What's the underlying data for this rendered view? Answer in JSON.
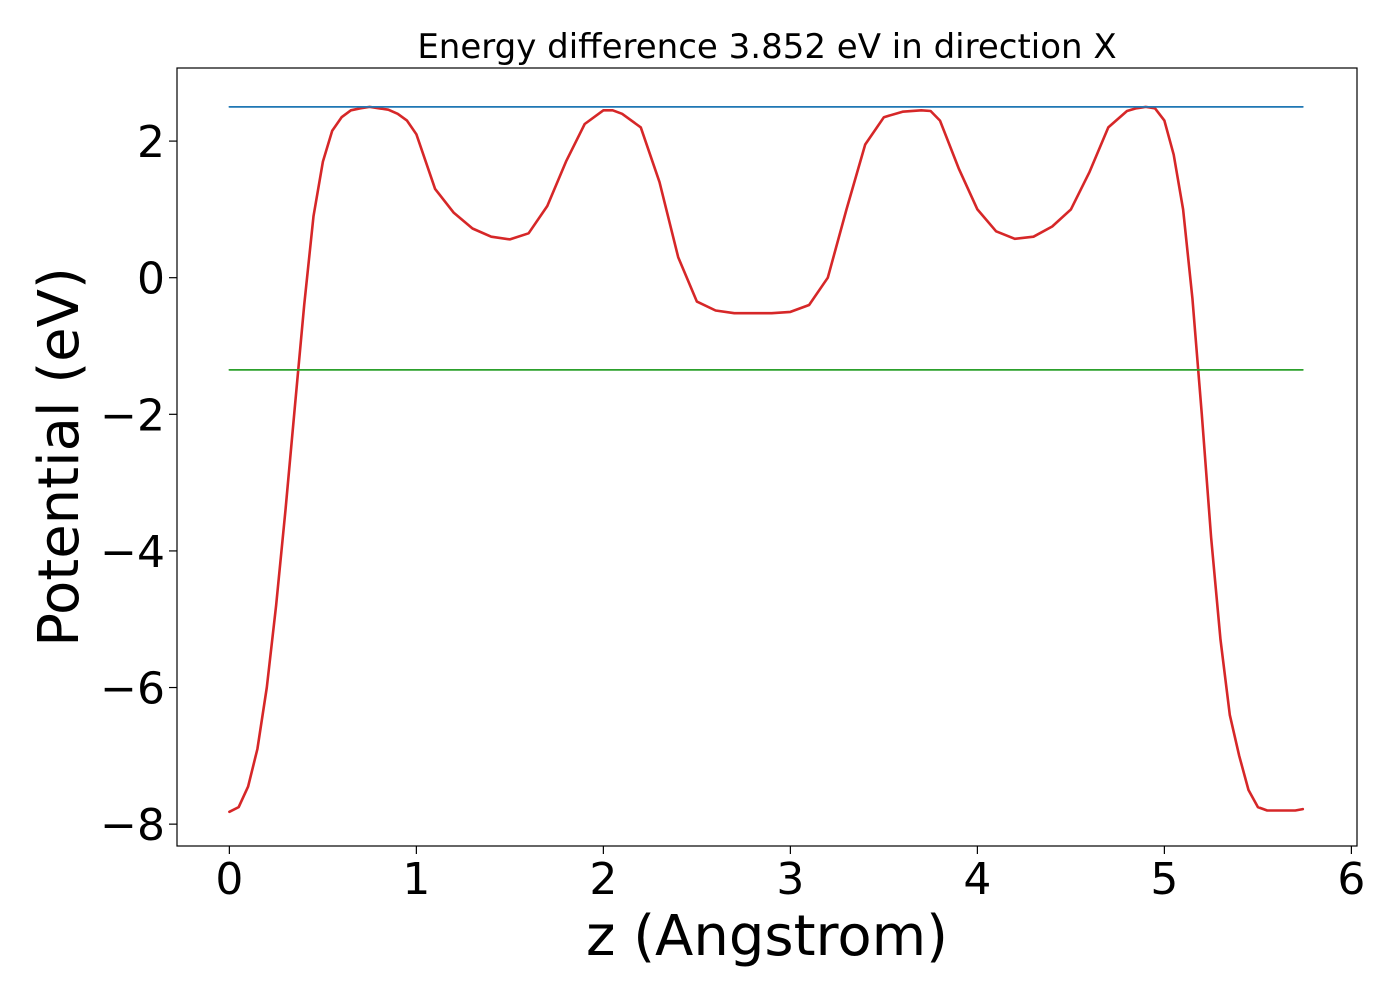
{
  "chart_data": {
    "type": "line",
    "title": "Energy difference 3.852 eV in direction X",
    "xlabel": "z (Angstrom)",
    "ylabel": "Potential (eV)",
    "xlim": [
      -0.28,
      6.03
    ],
    "ylim": [
      -8.32,
      3.07
    ],
    "xticks": [
      0,
      1,
      2,
      3,
      4,
      5,
      6
    ],
    "yticks": [
      -8,
      -6,
      -4,
      -2,
      0,
      2
    ],
    "xtick_labels": [
      "0",
      "1",
      "2",
      "3",
      "4",
      "5",
      "6"
    ],
    "ytick_labels": [
      "−8",
      "−6",
      "−4",
      "−2",
      "0",
      "2"
    ],
    "grid": false,
    "legend": "none",
    "series": [
      {
        "color": "#d62728",
        "x": [
          0.0,
          0.05,
          0.1,
          0.15,
          0.2,
          0.25,
          0.3,
          0.35,
          0.4,
          0.45,
          0.5,
          0.55,
          0.6,
          0.65,
          0.7,
          0.75,
          0.8,
          0.85,
          0.9,
          0.95,
          1.0,
          1.1,
          1.2,
          1.3,
          1.4,
          1.5,
          1.6,
          1.7,
          1.8,
          1.9,
          2.0,
          2.05,
          2.1,
          2.2,
          2.3,
          2.4,
          2.5,
          2.6,
          2.7,
          2.8,
          2.9,
          3.0,
          3.1,
          3.2,
          3.3,
          3.4,
          3.5,
          3.6,
          3.7,
          3.75,
          3.8,
          3.9,
          4.0,
          4.1,
          4.2,
          4.3,
          4.4,
          4.5,
          4.6,
          4.7,
          4.8,
          4.85,
          4.9,
          4.95,
          5.0,
          5.05,
          5.1,
          5.15,
          5.2,
          5.25,
          5.3,
          5.35,
          5.4,
          5.45,
          5.5,
          5.55,
          5.6,
          5.65,
          5.7,
          5.74
        ],
        "y": [
          -7.82,
          -7.75,
          -7.45,
          -6.9,
          -6.0,
          -4.8,
          -3.4,
          -1.9,
          -0.4,
          0.9,
          1.7,
          2.15,
          2.35,
          2.45,
          2.48,
          2.5,
          2.48,
          2.46,
          2.4,
          2.3,
          2.1,
          1.3,
          0.95,
          0.72,
          0.6,
          0.56,
          0.65,
          1.05,
          1.7,
          2.25,
          2.45,
          2.45,
          2.4,
          2.2,
          1.4,
          0.3,
          -0.35,
          -0.48,
          -0.52,
          -0.52,
          -0.52,
          -0.5,
          -0.4,
          0.0,
          1.0,
          1.95,
          2.35,
          2.43,
          2.45,
          2.44,
          2.3,
          1.6,
          1.0,
          0.68,
          0.57,
          0.6,
          0.75,
          1.0,
          1.55,
          2.2,
          2.44,
          2.48,
          2.5,
          2.48,
          2.3,
          1.8,
          1.0,
          -0.3,
          -2.0,
          -3.8,
          -5.3,
          -6.4,
          -7.0,
          -7.5,
          -7.75,
          -7.8,
          -7.8,
          -7.8,
          -7.8,
          -7.78
        ]
      },
      {
        "color": "#1f77b4",
        "x": [
          0.0,
          5.74
        ],
        "y": [
          2.5,
          2.5
        ]
      },
      {
        "color": "#2ca02c",
        "x": [
          0.0,
          5.74
        ],
        "y": [
          -1.35,
          -1.35
        ]
      }
    ]
  }
}
